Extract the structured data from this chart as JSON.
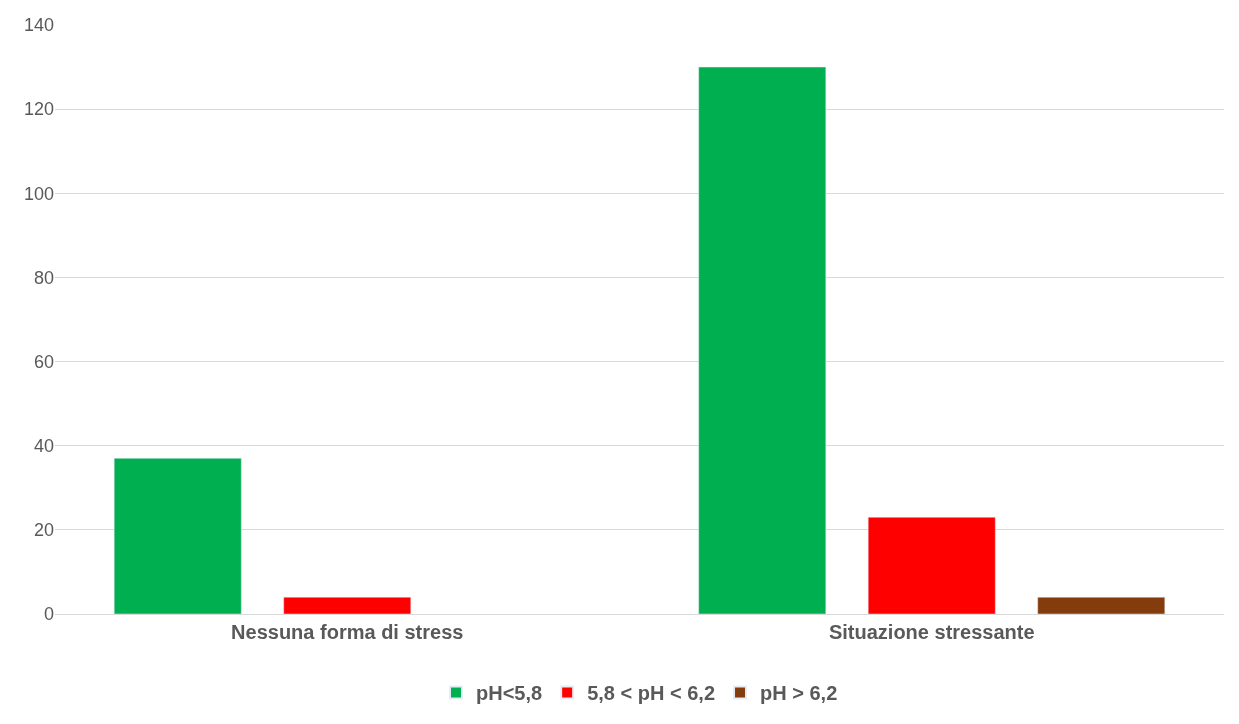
{
  "chart_data": {
    "type": "bar",
    "categories": [
      "Nessuna forma di stress",
      "Situazione stressante"
    ],
    "series": [
      {
        "name": "pH<5,8",
        "color": "#00b050",
        "values": [
          37,
          130
        ]
      },
      {
        "name": "5,8 < pH < 6,2",
        "color": "#ff0000",
        "values": [
          4,
          23
        ]
      },
      {
        "name": "pH > 6,2",
        "color": "#843c0c",
        "values": [
          null,
          4
        ]
      }
    ],
    "ylim": [
      0,
      140
    ],
    "yticks": [
      0,
      20,
      40,
      60,
      80,
      100,
      120,
      140
    ],
    "grid": "y",
    "legend": "bottom"
  }
}
